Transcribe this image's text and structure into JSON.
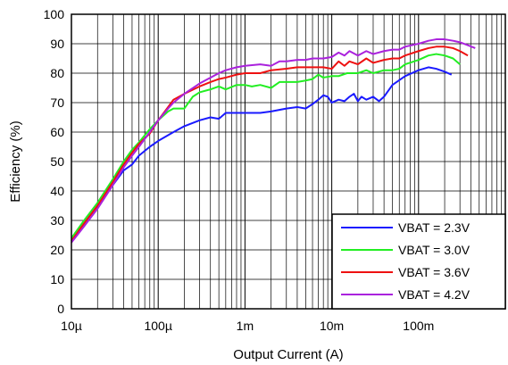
{
  "chart_data": {
    "type": "line",
    "xlabel": "Output Current (A)",
    "ylabel": "Efficiency (%)",
    "x_scale": "log",
    "xlim": [
      1e-05,
      1
    ],
    "ylim": [
      0,
      100
    ],
    "grid": true,
    "legend_position": "bottom-right",
    "x_ticks": [
      {
        "value": 1e-05,
        "label": "10µ"
      },
      {
        "value": 0.0001,
        "label": "100µ"
      },
      {
        "value": 0.001,
        "label": "1m"
      },
      {
        "value": 0.01,
        "label": "10m"
      },
      {
        "value": 0.1,
        "label": "100m"
      }
    ],
    "y_ticks": [
      0,
      10,
      20,
      30,
      40,
      50,
      60,
      70,
      80,
      90,
      100
    ],
    "series": [
      {
        "name": "VBAT = 2.3V",
        "color": "#1a1aff",
        "points": [
          [
            1e-05,
            23
          ],
          [
            1.4e-05,
            29
          ],
          [
            2e-05,
            35
          ],
          [
            3e-05,
            42
          ],
          [
            4e-05,
            47
          ],
          [
            5e-05,
            49
          ],
          [
            6e-05,
            52
          ],
          [
            8e-05,
            55
          ],
          [
            0.0001,
            57
          ],
          [
            0.00015,
            60
          ],
          [
            0.0002,
            62
          ],
          [
            0.0003,
            64
          ],
          [
            0.0004,
            65
          ],
          [
            0.0005,
            64.5
          ],
          [
            0.0006,
            66.5
          ],
          [
            0.0008,
            66.5
          ],
          [
            0.001,
            66.5
          ],
          [
            0.0015,
            66.5
          ],
          [
            0.002,
            67
          ],
          [
            0.003,
            68
          ],
          [
            0.004,
            68.5
          ],
          [
            0.005,
            68
          ],
          [
            0.006,
            69.5
          ],
          [
            0.007,
            71
          ],
          [
            0.008,
            72.5
          ],
          [
            0.009,
            72
          ],
          [
            0.01,
            70
          ],
          [
            0.012,
            71
          ],
          [
            0.014,
            70.5
          ],
          [
            0.016,
            72
          ],
          [
            0.018,
            73
          ],
          [
            0.02,
            70.5
          ],
          [
            0.022,
            72
          ],
          [
            0.025,
            71
          ],
          [
            0.03,
            72
          ],
          [
            0.035,
            70.5
          ],
          [
            0.04,
            72
          ],
          [
            0.05,
            76
          ],
          [
            0.07,
            79
          ],
          [
            0.1,
            81
          ],
          [
            0.13,
            82
          ],
          [
            0.16,
            81.5
          ],
          [
            0.2,
            80.5
          ],
          [
            0.24,
            79.5
          ]
        ]
      },
      {
        "name": "VBAT = 3.0V",
        "color": "#22ee22",
        "points": [
          [
            1e-05,
            24
          ],
          [
            1.4e-05,
            30
          ],
          [
            2e-05,
            36
          ],
          [
            3e-05,
            44
          ],
          [
            4e-05,
            50
          ],
          [
            5e-05,
            54
          ],
          [
            6e-05,
            56.5
          ],
          [
            8e-05,
            61
          ],
          [
            0.0001,
            64
          ],
          [
            0.00013,
            67
          ],
          [
            0.00015,
            68
          ],
          [
            0.0002,
            68
          ],
          [
            0.00025,
            72
          ],
          [
            0.0003,
            73.5
          ],
          [
            0.0004,
            74.5
          ],
          [
            0.0005,
            75.5
          ],
          [
            0.0006,
            74.5
          ],
          [
            0.0008,
            76
          ],
          [
            0.001,
            76
          ],
          [
            0.0012,
            75.5
          ],
          [
            0.0015,
            76
          ],
          [
            0.002,
            75
          ],
          [
            0.0025,
            77
          ],
          [
            0.003,
            77
          ],
          [
            0.004,
            77
          ],
          [
            0.005,
            77.5
          ],
          [
            0.006,
            78
          ],
          [
            0.007,
            79.5
          ],
          [
            0.008,
            78.5
          ],
          [
            0.01,
            79
          ],
          [
            0.012,
            79
          ],
          [
            0.015,
            80
          ],
          [
            0.02,
            80
          ],
          [
            0.025,
            81
          ],
          [
            0.03,
            80
          ],
          [
            0.04,
            81
          ],
          [
            0.05,
            81
          ],
          [
            0.06,
            81.5
          ],
          [
            0.07,
            83
          ],
          [
            0.1,
            84.5
          ],
          [
            0.13,
            86
          ],
          [
            0.16,
            86.5
          ],
          [
            0.2,
            86
          ],
          [
            0.25,
            85
          ],
          [
            0.3,
            83
          ]
        ]
      },
      {
        "name": "VBAT = 3.6V",
        "color": "#ee1111",
        "points": [
          [
            1e-05,
            23
          ],
          [
            1.4e-05,
            29
          ],
          [
            2e-05,
            35
          ],
          [
            3e-05,
            43
          ],
          [
            4e-05,
            49
          ],
          [
            5e-05,
            53
          ],
          [
            6e-05,
            56
          ],
          [
            8e-05,
            59.5
          ],
          [
            0.0001,
            64
          ],
          [
            0.00013,
            68.5
          ],
          [
            0.00015,
            71
          ],
          [
            0.0002,
            73
          ],
          [
            0.0003,
            75.5
          ],
          [
            0.0004,
            77
          ],
          [
            0.0005,
            78
          ],
          [
            0.0006,
            78.5
          ],
          [
            0.0008,
            79.5
          ],
          [
            0.001,
            80
          ],
          [
            0.0015,
            80
          ],
          [
            0.002,
            81
          ],
          [
            0.003,
            81.5
          ],
          [
            0.004,
            82
          ],
          [
            0.006,
            82
          ],
          [
            0.008,
            82
          ],
          [
            0.01,
            81.5
          ],
          [
            0.012,
            84
          ],
          [
            0.014,
            82.5
          ],
          [
            0.016,
            84
          ],
          [
            0.02,
            83
          ],
          [
            0.025,
            85
          ],
          [
            0.03,
            83.5
          ],
          [
            0.04,
            84.5
          ],
          [
            0.05,
            85
          ],
          [
            0.06,
            85
          ],
          [
            0.07,
            86
          ],
          [
            0.1,
            87.5
          ],
          [
            0.13,
            88.5
          ],
          [
            0.16,
            89
          ],
          [
            0.2,
            89
          ],
          [
            0.25,
            88.5
          ],
          [
            0.3,
            87.5
          ],
          [
            0.37,
            86
          ]
        ]
      },
      {
        "name": "VBAT = 4.2V",
        "color": "#aa22dd",
        "points": [
          [
            1e-05,
            22.5
          ],
          [
            1.4e-05,
            28
          ],
          [
            2e-05,
            34
          ],
          [
            3e-05,
            42
          ],
          [
            4e-05,
            48
          ],
          [
            5e-05,
            52
          ],
          [
            6e-05,
            55
          ],
          [
            8e-05,
            60
          ],
          [
            0.0001,
            64
          ],
          [
            0.00013,
            68
          ],
          [
            0.00015,
            70
          ],
          [
            0.0002,
            73
          ],
          [
            0.0003,
            76.5
          ],
          [
            0.0004,
            78.5
          ],
          [
            0.0005,
            80
          ],
          [
            0.0006,
            81
          ],
          [
            0.0008,
            82
          ],
          [
            0.001,
            82.5
          ],
          [
            0.0015,
            83
          ],
          [
            0.002,
            82.5
          ],
          [
            0.0025,
            84
          ],
          [
            0.003,
            84
          ],
          [
            0.004,
            84.5
          ],
          [
            0.005,
            84.5
          ],
          [
            0.006,
            85
          ],
          [
            0.008,
            85
          ],
          [
            0.01,
            85.5
          ],
          [
            0.012,
            87
          ],
          [
            0.014,
            86
          ],
          [
            0.016,
            87.5
          ],
          [
            0.02,
            86
          ],
          [
            0.025,
            87.5
          ],
          [
            0.03,
            86.5
          ],
          [
            0.04,
            87.5
          ],
          [
            0.05,
            88
          ],
          [
            0.06,
            88
          ],
          [
            0.07,
            89
          ],
          [
            0.1,
            90
          ],
          [
            0.13,
            91
          ],
          [
            0.16,
            91.5
          ],
          [
            0.2,
            91.5
          ],
          [
            0.25,
            91
          ],
          [
            0.3,
            90.5
          ],
          [
            0.37,
            89.5
          ],
          [
            0.45,
            88.5
          ]
        ]
      }
    ]
  }
}
